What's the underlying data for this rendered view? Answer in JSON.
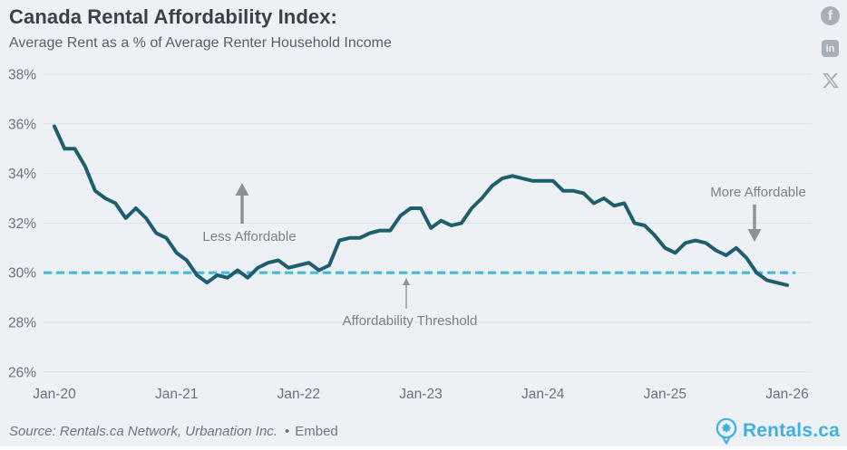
{
  "header": {
    "title": "Canada Rental Affordability Index:",
    "subtitle": "Average Rent as a % of Average Renter Household Income"
  },
  "social": {
    "facebook_glyph": "f",
    "linkedin_glyph": "in",
    "x_label": "X"
  },
  "chart_data": {
    "type": "line",
    "title": "Canada Rental Affordability Index",
    "subtitle": "Average Rent as a % of Average Renter Household Income",
    "frequency": "monthly",
    "x_start": "Jan-2020",
    "x_end": "Jan-2026",
    "x_ticklabels": [
      "Jan-20",
      "Jan-21",
      "Jan-22",
      "Jan-23",
      "Jan-24",
      "Jan-25",
      "Jan-26"
    ],
    "y_ticks": [
      26,
      28,
      30,
      32,
      34,
      36,
      38
    ],
    "y_tick_suffix": "%",
    "ylim": [
      26,
      38
    ],
    "grid": "horizontal",
    "legend": "none",
    "series": [
      {
        "name": "Average Rent as % of Average Renter Household Income",
        "color": "#1f5e6d",
        "values": [
          35.9,
          35.0,
          35.0,
          34.3,
          33.3,
          33.0,
          32.8,
          32.2,
          32.6,
          32.2,
          31.6,
          31.4,
          30.8,
          30.5,
          29.9,
          29.6,
          29.9,
          29.8,
          30.1,
          29.8,
          30.2,
          30.4,
          30.5,
          30.2,
          30.3,
          30.4,
          30.1,
          30.3,
          31.3,
          31.4,
          31.4,
          31.6,
          31.7,
          31.7,
          32.3,
          32.6,
          32.6,
          31.8,
          32.1,
          31.9,
          32.0,
          32.6,
          33.0,
          33.5,
          33.8,
          33.9,
          33.8,
          33.7,
          33.7,
          33.7,
          33.3,
          33.3,
          33.2,
          32.8,
          33.0,
          32.7,
          32.8,
          32.0,
          31.9,
          31.5,
          31.0,
          30.8,
          31.2,
          31.3,
          31.2,
          30.9,
          30.7,
          31.0,
          30.6,
          30.0,
          29.7,
          29.6,
          29.5
        ]
      }
    ],
    "threshold": {
      "value": 30,
      "color": "#47b9d3",
      "style": "dashed"
    },
    "annotations": [
      {
        "label": "Less Affordable",
        "text_x": 275,
        "text_y": 266,
        "arrow_x": 267,
        "arrow_from_y": 247,
        "arrow_to_y": 202,
        "thick": true
      },
      {
        "label": "Affordability Threshold",
        "text_x": 452,
        "text_y": 359,
        "arrow_x": 448,
        "arrow_from_y": 341,
        "arrow_to_y": 307,
        "thick": false
      },
      {
        "label": "More Affordable",
        "text_x": 836,
        "text_y": 217,
        "arrow_x": 832,
        "arrow_from_y": 226,
        "arrow_to_y": 267,
        "thick": true
      }
    ],
    "colors": {
      "background": "#edf1f6",
      "gridline": "#dce1e8",
      "tick_text": "#6b727c",
      "annotation_text": "#7c8187",
      "arrow": "#8d9196"
    }
  },
  "footer": {
    "source": "Source: Rentals.ca Network, Urbanation Inc.",
    "separator": "•",
    "embed_label": "Embed",
    "logo_text": "Rentals.ca",
    "logo_color": "#40b1dc"
  }
}
